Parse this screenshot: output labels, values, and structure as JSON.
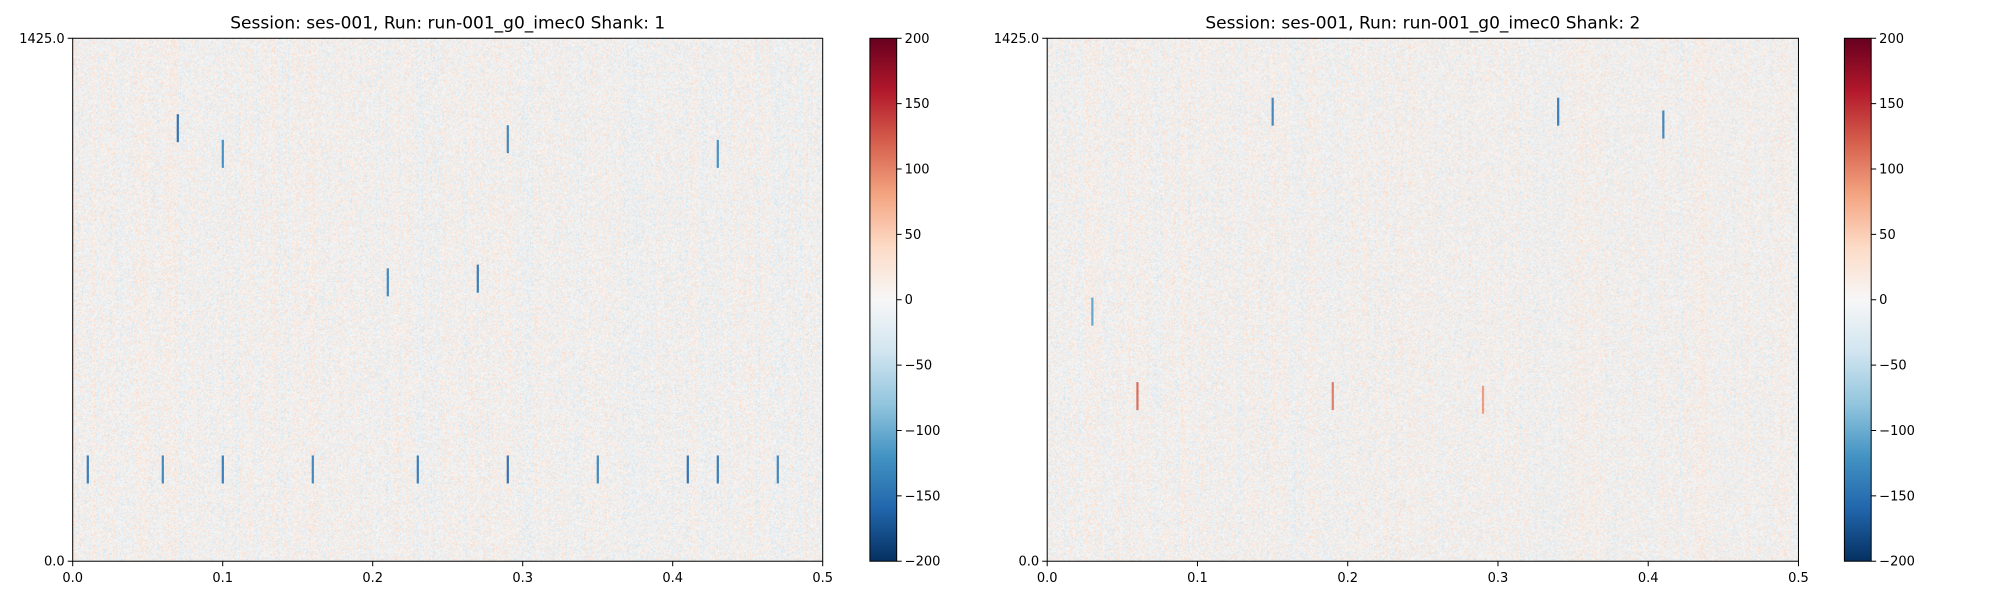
{
  "chart_data": [
    {
      "type": "heatmap",
      "title": "Session: ses-001, Run: run-001_g0_imec0 Shank: 1",
      "xlabel": "",
      "ylabel": "",
      "xlim": [
        0.0,
        0.5
      ],
      "ylim": [
        0.0,
        1425.0
      ],
      "x_ticks": [
        0.0,
        0.1,
        0.2,
        0.3,
        0.4,
        0.5
      ],
      "x_tick_labels": [
        "0.0",
        "0.1",
        "0.2",
        "0.3",
        "0.4",
        "0.5"
      ],
      "y_ticks": [
        0.0,
        1425.0
      ],
      "y_tick_labels": [
        "0.0",
        "1425.0"
      ],
      "colorbar": {
        "colormap": "RdBu_r",
        "range": [
          -200,
          200
        ],
        "ticks": [
          200,
          150,
          100,
          50,
          0,
          -50,
          -100,
          -150,
          -200
        ],
        "tick_labels": [
          "200",
          "150",
          "100",
          "50",
          "0",
          "−50",
          "−100",
          "−150",
          "−200"
        ]
      },
      "notable_events": [
        {
          "x": 0.07,
          "y": 1180,
          "value": -160
        },
        {
          "x": 0.1,
          "y": 1110,
          "value": -130
        },
        {
          "x": 0.21,
          "y": 760,
          "value": -140
        },
        {
          "x": 0.27,
          "y": 770,
          "value": -150
        },
        {
          "x": 0.29,
          "y": 1150,
          "value": -140
        },
        {
          "x": 0.43,
          "y": 1110,
          "value": -130
        },
        {
          "x": 0.01,
          "y": 250,
          "value": -150
        },
        {
          "x": 0.06,
          "y": 250,
          "value": -140
        },
        {
          "x": 0.1,
          "y": 250,
          "value": -150
        },
        {
          "x": 0.16,
          "y": 250,
          "value": -140
        },
        {
          "x": 0.23,
          "y": 250,
          "value": -150
        },
        {
          "x": 0.29,
          "y": 250,
          "value": -160
        },
        {
          "x": 0.35,
          "y": 250,
          "value": -140
        },
        {
          "x": 0.41,
          "y": 250,
          "value": -160
        },
        {
          "x": 0.43,
          "y": 250,
          "value": -150
        },
        {
          "x": 0.47,
          "y": 250,
          "value": -140
        }
      ]
    },
    {
      "type": "heatmap",
      "title": "Session: ses-001, Run: run-001_g0_imec0 Shank: 2",
      "xlabel": "",
      "ylabel": "",
      "xlim": [
        0.0,
        0.5
      ],
      "ylim": [
        0.0,
        1425.0
      ],
      "x_ticks": [
        0.0,
        0.1,
        0.2,
        0.3,
        0.4,
        0.5
      ],
      "x_tick_labels": [
        "0.0",
        "0.1",
        "0.2",
        "0.3",
        "0.4",
        "0.5"
      ],
      "y_ticks": [
        0.0,
        1425.0
      ],
      "y_tick_labels": [
        "0.0",
        "1425.0"
      ],
      "colorbar": {
        "colormap": "RdBu_r",
        "range": [
          -200,
          200
        ],
        "ticks": [
          200,
          150,
          100,
          50,
          0,
          -50,
          -100,
          -150,
          -200
        ],
        "tick_labels": [
          "200",
          "150",
          "100",
          "50",
          "0",
          "−50",
          "−100",
          "−150",
          "−200"
        ]
      },
      "notable_events": [
        {
          "x": 0.15,
          "y": 1225,
          "value": -140
        },
        {
          "x": 0.34,
          "y": 1225,
          "value": -150
        },
        {
          "x": 0.41,
          "y": 1190,
          "value": -140
        },
        {
          "x": 0.03,
          "y": 680,
          "value": -110
        },
        {
          "x": 0.06,
          "y": 450,
          "value": 120
        },
        {
          "x": 0.19,
          "y": 450,
          "value": 110
        },
        {
          "x": 0.29,
          "y": 440,
          "value": 90
        }
      ]
    }
  ]
}
